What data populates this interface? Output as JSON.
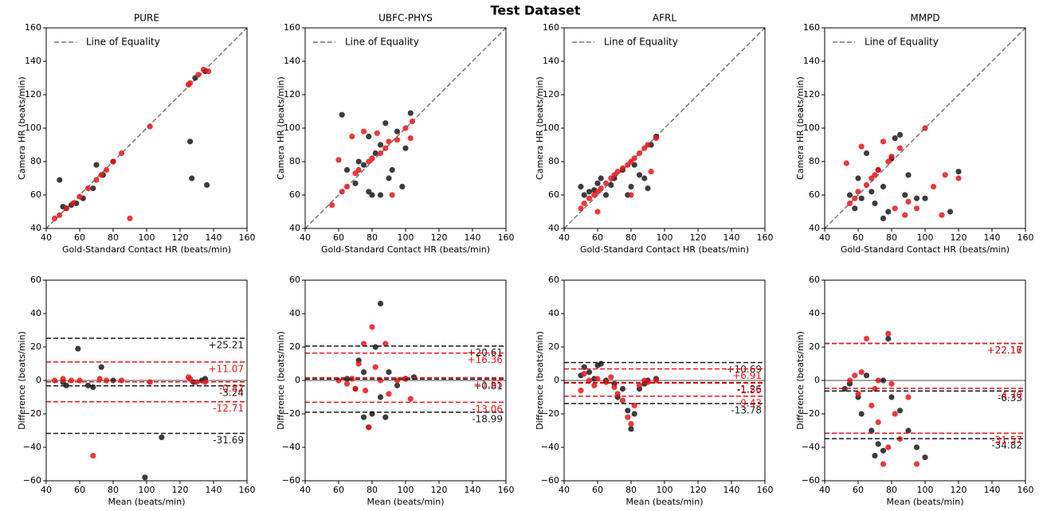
{
  "title": "Test Dataset",
  "chart_data": [
    {
      "type": "scatter",
      "title": "PURE",
      "xlabel": "Gold-Standard Contact HR (beats/min)",
      "ylabel": "Camera HR (beats/min)",
      "xlim": [
        40,
        160
      ],
      "ylim": [
        40,
        160
      ],
      "xticks": [
        40,
        60,
        80,
        100,
        120,
        140,
        160
      ],
      "yticks": [
        40,
        60,
        80,
        100,
        120,
        140,
        160
      ],
      "equality_line": "Line of Equality",
      "series": [
        {
          "color": "#1a1a1a",
          "x": [
            48,
            50,
            52,
            55,
            58,
            62,
            68,
            70,
            74,
            80,
            126,
            127,
            129,
            136,
            135
          ],
          "y": [
            69,
            53,
            52,
            54,
            55,
            58,
            64,
            78,
            72,
            80,
            92,
            70,
            130,
            66,
            134
          ]
        },
        {
          "color": "#e8161b",
          "x": [
            45,
            48,
            52,
            56,
            60,
            65,
            70,
            73,
            76,
            80,
            85,
            90,
            102,
            125,
            126,
            131,
            134,
            137
          ],
          "y": [
            46,
            48,
            52,
            55,
            59,
            64,
            69,
            72,
            75,
            80,
            85,
            46,
            101,
            126,
            127,
            132,
            135,
            134
          ]
        }
      ]
    },
    {
      "type": "scatter",
      "title": "UBFC-PHYS",
      "xlabel": "Gold-Standard Contact HR (beats/min)",
      "ylabel": "Camera HR (beats/min)",
      "xlim": [
        40,
        160
      ],
      "ylim": [
        40,
        160
      ],
      "xticks": [
        40,
        60,
        80,
        100,
        120,
        140,
        160
      ],
      "yticks": [
        40,
        60,
        80,
        100,
        120,
        140,
        160
      ],
      "equality_line": "Line of Equality",
      "series": [
        {
          "color": "#1a1a1a",
          "x": [
            62,
            65,
            70,
            72,
            75,
            78,
            80,
            82,
            85,
            88,
            90,
            92,
            95,
            98,
            100,
            103,
            85,
            78
          ],
          "y": [
            108,
            75,
            67,
            80,
            78,
            62,
            60,
            85,
            60,
            103,
            70,
            75,
            98,
            65,
            88,
            109,
            90,
            95
          ]
        },
        {
          "color": "#e8161b",
          "x": [
            56,
            60,
            62,
            65,
            68,
            70,
            72,
            75,
            78,
            80,
            83,
            85,
            88,
            90,
            95,
            100,
            104,
            103,
            92
          ],
          "y": [
            54,
            81,
            62,
            65,
            95,
            73,
            75,
            98,
            80,
            82,
            97,
            85,
            88,
            92,
            93,
            100,
            104,
            94,
            60
          ]
        }
      ]
    },
    {
      "type": "scatter",
      "title": "AFRL",
      "xlabel": "Gold-Standard Contact HR (beats/min)",
      "ylabel": "Camera HR (beats/min)",
      "xlim": [
        40,
        160
      ],
      "ylim": [
        40,
        160
      ],
      "xticks": [
        40,
        60,
        80,
        100,
        120,
        140,
        160
      ],
      "yticks": [
        40,
        60,
        80,
        100,
        120,
        140,
        160
      ],
      "equality_line": "Line of Equality",
      "series": [
        {
          "color": "#1a1a1a",
          "x": [
            50,
            52,
            55,
            58,
            60,
            62,
            65,
            68,
            70,
            75,
            78,
            80,
            82,
            85,
            88,
            90,
            92,
            95
          ],
          "y": [
            65,
            60,
            62,
            63,
            67,
            70,
            60,
            66,
            70,
            75,
            60,
            65,
            78,
            72,
            70,
            64,
            90,
            95
          ]
        },
        {
          "color": "#e8161b",
          "x": [
            50,
            52,
            55,
            58,
            60,
            62,
            65,
            68,
            70,
            72,
            75,
            78,
            80,
            82,
            85,
            88,
            90,
            92,
            95,
            60,
            80
          ],
          "y": [
            52,
            55,
            58,
            60,
            62,
            64,
            67,
            70,
            72,
            74,
            76,
            78,
            80,
            82,
            85,
            88,
            90,
            74,
            94,
            50,
            60
          ]
        }
      ]
    },
    {
      "type": "scatter",
      "title": "MMPD",
      "xlabel": "Gold-Standard Contact HR (beats/min)",
      "ylabel": "Camera HR (beats/min)",
      "xlim": [
        40,
        160
      ],
      "ylim": [
        40,
        160
      ],
      "xticks": [
        40,
        60,
        80,
        100,
        120,
        140,
        160
      ],
      "yticks": [
        40,
        60,
        80,
        100,
        120,
        140,
        160
      ],
      "equality_line": "Line of Equality",
      "series": [
        {
          "color": "#1a1a1a",
          "x": [
            55,
            58,
            60,
            62,
            65,
            68,
            70,
            72,
            75,
            78,
            80,
            82,
            85,
            88,
            90,
            95,
            100,
            115,
            120,
            75
          ],
          "y": [
            60,
            52,
            70,
            58,
            85,
            62,
            55,
            75,
            46,
            50,
            82,
            94,
            96,
            60,
            72,
            58,
            58,
            50,
            74,
            65
          ]
        },
        {
          "color": "#e8161b",
          "x": [
            53,
            55,
            58,
            60,
            62,
            65,
            68,
            70,
            72,
            75,
            78,
            80,
            82,
            85,
            88,
            90,
            95,
            100,
            105,
            112,
            120,
            110
          ],
          "y": [
            79,
            55,
            58,
            62,
            89,
            66,
            70,
            72,
            75,
            92,
            80,
            83,
            52,
            88,
            48,
            56,
            52,
            100,
            65,
            72,
            70,
            48
          ]
        }
      ]
    },
    {
      "type": "scatter",
      "xlabel": "Mean (beats/min)",
      "ylabel": "Difference (beats/min)",
      "xlim": [
        40,
        160
      ],
      "ylim": [
        -60,
        60
      ],
      "xticks": [
        40,
        60,
        80,
        100,
        120,
        140,
        160
      ],
      "yticks": [
        {
          "value": -60,
          "label": "−60"
        },
        {
          "value": -40,
          "label": "−40"
        },
        {
          "value": -20,
          "label": "−20"
        },
        0,
        20,
        40,
        60
      ],
      "series": [
        {
          "color": "#1a1a1a",
          "x": [
            50,
            52,
            59,
            65,
            68,
            73,
            80,
            99,
            109,
            128,
            135,
            133
          ],
          "y": [
            -1,
            -3,
            19,
            -3,
            -4,
            8,
            0,
            -58,
            -34,
            -1,
            1,
            0
          ]
        },
        {
          "color": "#e8161b",
          "x": [
            45,
            50,
            55,
            60,
            68,
            72,
            76,
            85,
            102,
            126,
            130,
            135,
            125
          ],
          "y": [
            0,
            1,
            0,
            0,
            -45,
            1,
            0,
            0,
            -1,
            1,
            -1,
            -1,
            2
          ]
        }
      ],
      "reference_lines": [
        {
          "value": 25.21,
          "label": "+25.21",
          "color": "#1a1a1a"
        },
        {
          "value": -3.24,
          "label": "-3.24",
          "color": "#1a1a1a"
        },
        {
          "value": -31.69,
          "label": "-31.69",
          "color": "#1a1a1a"
        },
        {
          "value": 11.07,
          "label": "+11.07",
          "color": "#e8161b"
        },
        {
          "value": -0.82,
          "label": "-0.82",
          "color": "#e8161b"
        },
        {
          "value": -12.71,
          "label": "-12.71",
          "color": "#e8161b"
        }
      ]
    },
    {
      "type": "scatter",
      "xlabel": "Mean (beats/min)",
      "ylabel": "Difference (beats/min)",
      "xlim": [
        40,
        160
      ],
      "ylim": [
        -60,
        60
      ],
      "xticks": [
        40,
        60,
        80,
        100,
        120,
        140,
        160
      ],
      "yticks": [
        {
          "value": -60,
          "label": "−60"
        },
        {
          "value": -40,
          "label": "−40"
        },
        {
          "value": -20,
          "label": "−20"
        },
        0,
        20,
        40,
        60
      ],
      "series": [
        {
          "color": "#1a1a1a",
          "x": [
            65,
            70,
            72,
            75,
            78,
            80,
            82,
            85,
            85,
            88,
            90,
            95,
            100,
            105,
            75
          ],
          "y": [
            1,
            -5,
            12,
            -22,
            -28,
            -20,
            20,
            46,
            -10,
            -22,
            5,
            -3,
            1,
            2,
            5
          ]
        },
        {
          "color": "#e8161b",
          "x": [
            60,
            65,
            68,
            70,
            72,
            75,
            78,
            80,
            82,
            85,
            88,
            90,
            95,
            100,
            103,
            76
          ],
          "y": [
            0,
            -2,
            1,
            -5,
            10,
            22,
            -28,
            32,
            8,
            0,
            22,
            -8,
            0,
            1,
            -11,
            -6
          ]
        }
      ],
      "reference_lines": [
        {
          "value": 20.61,
          "label": "+20.61",
          "color": "#1a1a1a"
        },
        {
          "value": 0.81,
          "label": "+0.81",
          "color": "#1a1a1a"
        },
        {
          "value": -18.99,
          "label": "-18.99",
          "color": "#1a1a1a"
        },
        {
          "value": 16.36,
          "label": "+16.36",
          "color": "#e8161b"
        },
        {
          "value": 1.65,
          "label": "+1.65",
          "color": "#e8161b"
        },
        {
          "value": -13.06,
          "label": "-13.06",
          "color": "#e8161b"
        }
      ]
    },
    {
      "type": "scatter",
      "xlabel": "Mean (beats/min)",
      "ylabel": "Difference (beats/min)",
      "xlim": [
        40,
        160
      ],
      "ylim": [
        -60,
        60
      ],
      "xticks": [
        40,
        60,
        80,
        100,
        120,
        140,
        160
      ],
      "yticks": [
        {
          "value": -60,
          "label": "−60"
        },
        {
          "value": -40,
          "label": "−40"
        },
        {
          "value": -20,
          "label": "−20"
        },
        0,
        20,
        40,
        60
      ],
      "series": [
        {
          "color": "#1a1a1a",
          "x": [
            50,
            52,
            55,
            58,
            60,
            62,
            65,
            70,
            75,
            78,
            80,
            82,
            85,
            88,
            90,
            95,
            72
          ],
          "y": [
            3,
            8,
            5,
            1,
            9,
            10,
            0,
            -2,
            -5,
            -18,
            -29,
            -20,
            -5,
            -2,
            0,
            1,
            -10
          ]
        },
        {
          "color": "#e8161b",
          "x": [
            50,
            52,
            55,
            58,
            60,
            65,
            70,
            72,
            75,
            78,
            80,
            82,
            85,
            88,
            90,
            95,
            68
          ],
          "y": [
            -6,
            4,
            0,
            -3,
            1,
            -1,
            -4,
            -8,
            -12,
            -22,
            -26,
            -15,
            -3,
            0,
            -1,
            0,
            2
          ]
        }
      ],
      "reference_lines": [
        {
          "value": 10.69,
          "label": "+10.69",
          "color": "#1a1a1a"
        },
        {
          "value": -1.26,
          "label": "-1.26",
          "color": "#1a1a1a"
        },
        {
          "value": -13.78,
          "label": "-13.78",
          "color": "#1a1a1a"
        },
        {
          "value": 6.91,
          "label": "+6.91",
          "color": "#e8161b"
        },
        {
          "value": -1.55,
          "label": "-1.55",
          "color": "#e8161b"
        },
        {
          "value": -9.43,
          "label": "-9.43",
          "color": "#e8161b"
        }
      ]
    },
    {
      "type": "scatter",
      "xlabel": "Mean (beats/min)",
      "ylabel": "Difference (beats/min)",
      "xlim": [
        40,
        160
      ],
      "ylim": [
        -60,
        60
      ],
      "xticks": [
        40,
        60,
        80,
        100,
        120,
        140,
        160
      ],
      "yticks": [
        {
          "value": -60,
          "label": "−60"
        },
        {
          "value": -40,
          "label": "−40"
        },
        {
          "value": -20,
          "label": "−20"
        },
        0,
        20,
        40,
        60
      ],
      "series": [
        {
          "color": "#1a1a1a",
          "x": [
            52,
            55,
            60,
            62,
            65,
            68,
            70,
            72,
            75,
            78,
            80,
            85,
            90,
            95,
            100,
            75
          ],
          "y": [
            -5,
            -2,
            -10,
            -20,
            3,
            -30,
            -45,
            -38,
            -42,
            25,
            -10,
            -18,
            -30,
            -40,
            -46,
            0
          ]
        },
        {
          "color": "#e8161b",
          "x": [
            55,
            58,
            60,
            62,
            65,
            68,
            70,
            72,
            75,
            78,
            80,
            82,
            85,
            90,
            95,
            72,
            78
          ],
          "y": [
            0,
            3,
            -8,
            5,
            25,
            -15,
            -5,
            -25,
            -50,
            28,
            -2,
            -20,
            -35,
            -10,
            -50,
            0,
            -40
          ]
        }
      ],
      "reference_lines": [
        {
          "value": 22.17,
          "label": "+22.17",
          "color": "#1a1a1a"
        },
        {
          "value": -6.33,
          "label": "-6.33",
          "color": "#1a1a1a"
        },
        {
          "value": -34.82,
          "label": "-34.82",
          "color": "#1a1a1a"
        },
        {
          "value": 22.16,
          "label": "+22.16",
          "color": "#e8161b"
        },
        {
          "value": -4.7,
          "label": "-4.70",
          "color": "#e8161b"
        },
        {
          "value": -31.57,
          "label": "-31.57",
          "color": "#e8161b"
        }
      ]
    }
  ]
}
